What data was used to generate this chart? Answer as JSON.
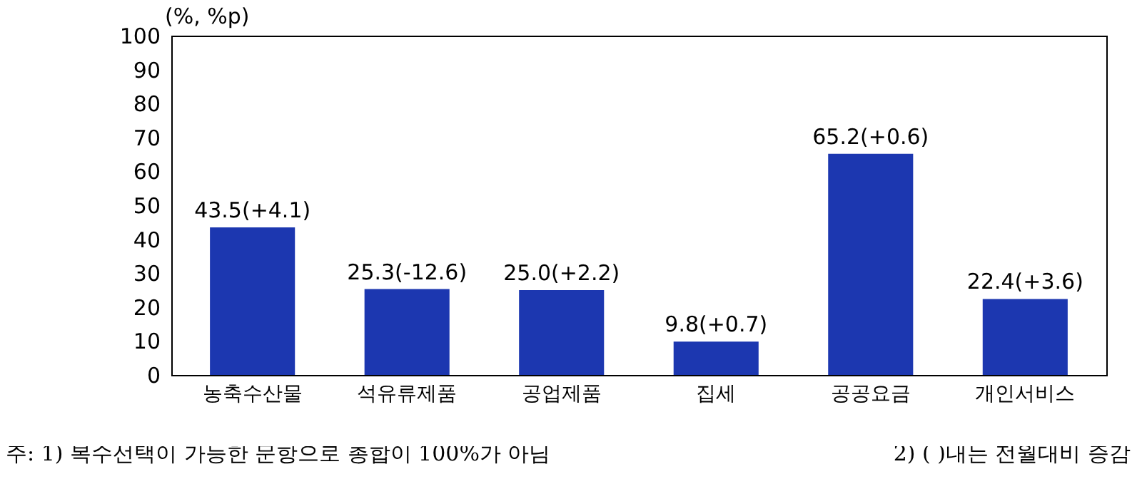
{
  "chart_data": {
    "type": "bar",
    "ylabel": "(%, %p)",
    "categories": [
      "농축수산물",
      "석유류제품",
      "공업제품",
      "집세",
      "공공요금",
      "개인서비스"
    ],
    "values": [
      43.5,
      25.3,
      25.0,
      9.8,
      65.2,
      22.4
    ],
    "value_labels": [
      "43.5(+4.1)",
      "25.3(-12.6)",
      "25.0(+2.2)",
      "9.8(+0.7)",
      "65.2(+0.6)",
      "22.4(+3.6)"
    ],
    "color": "#1c37b0",
    "ylim": [
      0,
      100
    ],
    "yticks": [
      0,
      10,
      20,
      30,
      40,
      50,
      60,
      70,
      80,
      90,
      100
    ],
    "annotations": [
      "주: 1) 복수선택이 가능한 문항으로 총합이 100%가 아님",
      "2) ( )내는 전월대비 증감"
    ]
  }
}
